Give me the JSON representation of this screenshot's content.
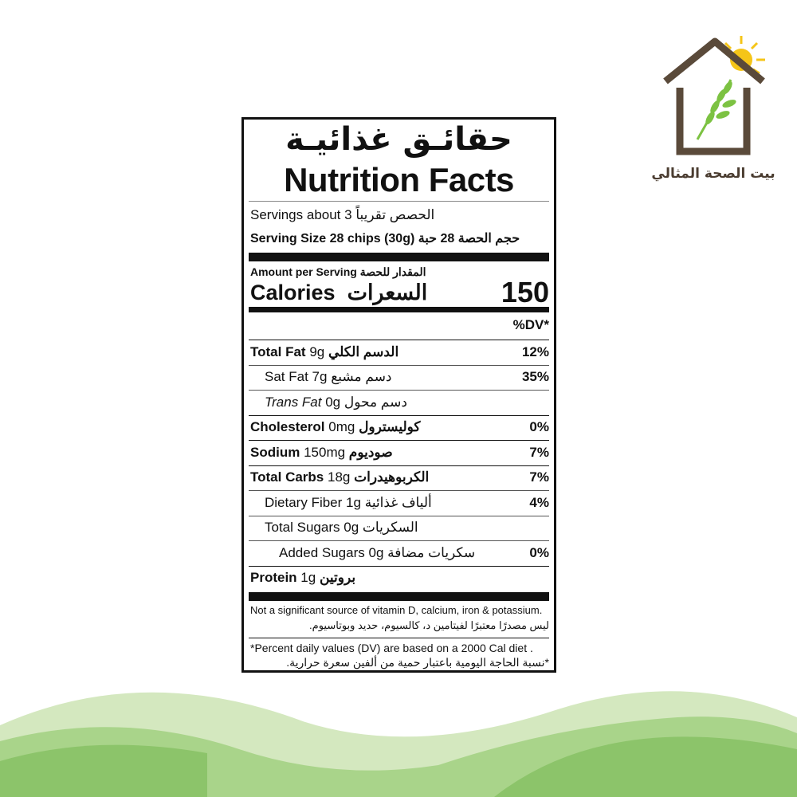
{
  "logo": {
    "text": "بيت الصحة المثالي",
    "colors": {
      "house": "#5a4a3a",
      "wheat": "#7cc242",
      "sun": "#f5c518"
    }
  },
  "label": {
    "title_ar": "حقائـق غذائيـة",
    "title_en": "Nutrition Facts",
    "servings_en": "Servings about 3",
    "servings_ar": "الحصص تقريباً",
    "serving_size_en": "Serving Size 28 chips (30g)",
    "serving_size_ar": "حجم الحصة 28 حبة",
    "amount_en": "Amount per Serving",
    "amount_ar": "المقدار للحصة",
    "calories_en": "Calories",
    "calories_ar": "السعرات",
    "calories_value": "150",
    "dv_header": "%DV*",
    "nutrients": [
      {
        "en": "Total Fat",
        "amount": "9g",
        "ar": "الدسم الكلي",
        "dv": "12%"
      },
      {
        "en": "Sat Fat",
        "amount": "7g",
        "ar": "دسم مشبع",
        "dv": "35%"
      },
      {
        "en": "Trans Fat",
        "amount": "0g",
        "ar": "دسم محول",
        "dv": ""
      },
      {
        "en": "Cholesterol",
        "amount": "0mg",
        "ar": "كوليسترول",
        "dv": "0%"
      },
      {
        "en": "Sodium",
        "amount": "150mg",
        "ar": "صوديوم",
        "dv": "7%"
      },
      {
        "en": "Total Carbs",
        "amount": "18g",
        "ar": "الكربوهيدرات",
        "dv": "7%"
      },
      {
        "en": "Dietary Fiber",
        "amount": "1g",
        "ar": "ألياف غذائية",
        "dv": "4%"
      },
      {
        "en": "Total Sugars",
        "amount": "0g",
        "ar": "السكريات",
        "dv": ""
      },
      {
        "en": "Added Sugars",
        "amount": "0g",
        "ar": "سكريات مضافة",
        "dv": "0%"
      },
      {
        "en": "Protein",
        "amount": "1g",
        "ar": "بروتين",
        "dv": ""
      }
    ],
    "note_en": "Not a significant source of vitamin D, calcium, iron & potassium.",
    "note_ar": "ليس مصدرًا معتبرًا لفيتامين د، كالسيوم، حديد وبوتاسيوم.",
    "footnote_en": "*Percent daily values (DV)  are based on a 2000 Cal diet .",
    "footnote_ar": "*نسبة الحاجة اليومية باعتبار حمية من ألفين سعرة حرارية."
  },
  "colors": {
    "wave_light": "#d4e8bf",
    "wave_mid": "#a9d48a",
    "wave_dark": "#8cc46a"
  }
}
